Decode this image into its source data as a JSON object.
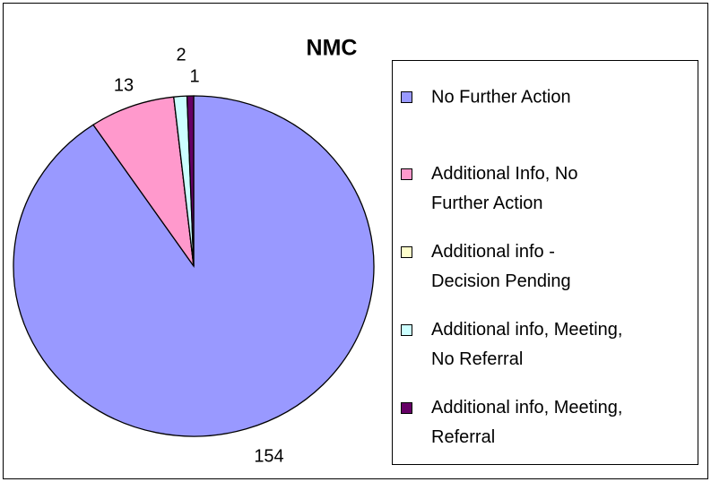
{
  "chart_data": {
    "type": "pie",
    "title": "NMC",
    "categories": [
      "No Further Action",
      "Additional Info, No Further Action",
      "Additional info - Decision Pending",
      "Additional info, Meeting, No Referral",
      "Additional info, Meeting, Referral"
    ],
    "values": [
      154,
      13,
      0,
      2,
      1
    ],
    "value_labels": [
      "154",
      "13",
      null,
      "2",
      "1"
    ],
    "colors": [
      "#9999ff",
      "#ff99cc",
      "#ffffcc",
      "#ccffff",
      "#660066"
    ],
    "legend": "right"
  }
}
